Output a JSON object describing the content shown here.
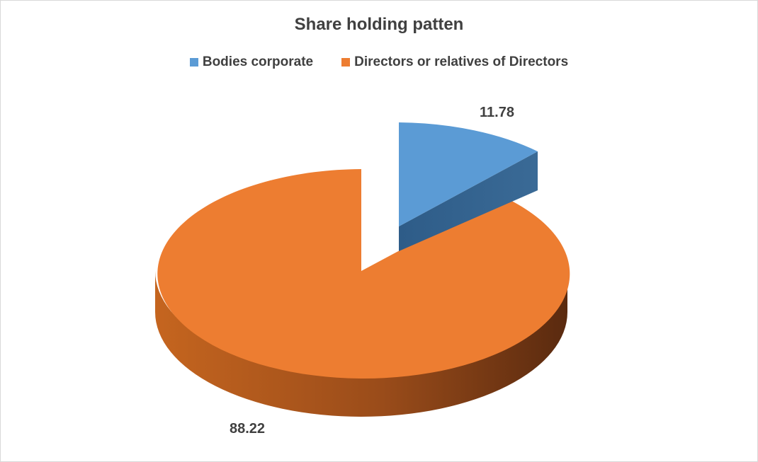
{
  "chart_data": {
    "type": "pie",
    "title": "Share holding patten",
    "style": "3d-exploded",
    "legend_position": "top",
    "slices": [
      {
        "label": "Bodies corporate",
        "value": 11.78,
        "data_label": "11.78",
        "color": "#5b9bd5"
      },
      {
        "label": "Directors or relatives of Directors",
        "value": 88.22,
        "data_label": "88.22",
        "color": "#ed7d31"
      }
    ]
  }
}
